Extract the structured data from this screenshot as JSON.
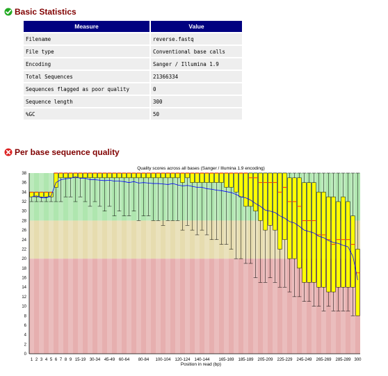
{
  "basic_statistics": {
    "title": "Basic Statistics",
    "status_icon": "pass-check-icon",
    "status_color": "#22aa22",
    "headers": [
      "Measure",
      "Value"
    ],
    "rows": [
      {
        "measure": "Filename",
        "value": "reverse.fastq"
      },
      {
        "measure": "File type",
        "value": "Conventional base calls"
      },
      {
        "measure": "Encoding",
        "value": "Sanger / Illumina 1.9"
      },
      {
        "measure": "Total Sequences",
        "value": "21366334"
      },
      {
        "measure": "Sequences flagged as poor quality",
        "value": "0"
      },
      {
        "measure": "Sequence length",
        "value": "300"
      },
      {
        "measure": "%GC",
        "value": "50"
      }
    ]
  },
  "per_base_quality": {
    "title": "Per base sequence quality",
    "status_icon": "fail-x-icon",
    "status_color": "#dd2222"
  },
  "colors": {
    "header_bg": "#000080",
    "section_title": "#800000",
    "zone_good": "#afe6af",
    "zone_warn": "#e6dcaf",
    "zone_bad": "#e6afaf",
    "box_fill": "#ffff00",
    "median": "#ff0000",
    "mean": "#0000ff"
  },
  "chart_data": {
    "type": "boxplot",
    "title": "Quality scores across all bases (Sanger / Illumina 1.9 encoding)",
    "xlabel": "Position in read (bp)",
    "ylabel": "",
    "ylim": [
      0,
      38
    ],
    "yticks": [
      0,
      2,
      4,
      6,
      8,
      10,
      12,
      14,
      16,
      18,
      20,
      22,
      24,
      26,
      28,
      30,
      32,
      34,
      36,
      38
    ],
    "zones": [
      {
        "name": "good",
        "from": 28,
        "to": 38
      },
      {
        "name": "warn",
        "from": 20,
        "to": 28
      },
      {
        "name": "bad",
        "from": 0,
        "to": 20
      }
    ],
    "categories": [
      "1",
      "2",
      "3",
      "4",
      "5",
      "6",
      "7",
      "8",
      "9",
      "10-14",
      "15-19",
      "20-24",
      "25-29",
      "30-34",
      "35-39",
      "40-44",
      "45-49",
      "50-54",
      "55-59",
      "60-64",
      "65-69",
      "70-74",
      "75-79",
      "80-84",
      "85-89",
      "90-94",
      "95-99",
      "100-104",
      "105-109",
      "110-114",
      "115-119",
      "120-124",
      "125-129",
      "130-134",
      "135-139",
      "140-144",
      "145-149",
      "150-154",
      "155-159",
      "160-164",
      "165-169",
      "170-174",
      "175-179",
      "180-184",
      "185-189",
      "190-194",
      "195-199",
      "200-204",
      "205-209",
      "210-214",
      "215-219",
      "220-224",
      "225-229",
      "230-234",
      "235-239",
      "240-244",
      "245-249",
      "250-254",
      "255-259",
      "260-264",
      "265-269",
      "270-274",
      "275-279",
      "280-284",
      "285-289",
      "290-294",
      "295-299",
      "300"
    ],
    "xtick_labels": [
      "1",
      "2",
      "3",
      "4",
      "5",
      "6",
      "7",
      "8",
      "9",
      "15-19",
      "30-34",
      "45-49",
      "60-64",
      "80-84",
      "100-104",
      "120-124",
      "140-144",
      "165-169",
      "185-189",
      "205-209",
      "225-229",
      "245-249",
      "265-269",
      "285-289",
      "300"
    ],
    "series": [
      {
        "name": "lower_whisker",
        "values": [
          32,
          32,
          32,
          32,
          32,
          32,
          32,
          33,
          33,
          32,
          33,
          32,
          31,
          32,
          31,
          30,
          31,
          29,
          30,
          29,
          29,
          30,
          28,
          29,
          29,
          28,
          28,
          27,
          28,
          28,
          28,
          26,
          27,
          26,
          25,
          26,
          25,
          24,
          24,
          23,
          23,
          22,
          20,
          20,
          19,
          19,
          16,
          15,
          15,
          16,
          15,
          14,
          14,
          13,
          12,
          12,
          11,
          11,
          10,
          10,
          9,
          10,
          9,
          9,
          9,
          9,
          8,
          8
        ]
      },
      {
        "name": "lower_quartile",
        "values": [
          33,
          33,
          33,
          33,
          33,
          35,
          37,
          37,
          37,
          37,
          37,
          37,
          37,
          37,
          37,
          37,
          37,
          37,
          37,
          37,
          37,
          37,
          37,
          37,
          37,
          37,
          37,
          37,
          37,
          37,
          37,
          36,
          37,
          36,
          36,
          36,
          36,
          36,
          36,
          36,
          35,
          35,
          34,
          33,
          31,
          31,
          30,
          28,
          26,
          27,
          26,
          22,
          24,
          20,
          20,
          18,
          15,
          15,
          15,
          14,
          14,
          13,
          13,
          14,
          14,
          14,
          14,
          8
        ]
      },
      {
        "name": "median",
        "values": [
          34,
          34,
          34,
          34,
          34,
          38,
          38,
          38,
          38,
          38,
          38,
          38,
          38,
          38,
          38,
          38,
          38,
          38,
          38,
          38,
          38,
          38,
          38,
          38,
          38,
          38,
          38,
          38,
          38,
          38,
          38,
          38,
          38,
          38,
          38,
          38,
          38,
          38,
          38,
          38,
          38,
          38,
          38,
          38,
          38,
          37,
          37,
          36,
          36,
          36,
          36,
          34,
          35,
          32,
          32,
          31,
          28,
          28,
          28,
          25,
          25,
          24,
          23,
          24,
          24,
          24,
          23,
          17
        ]
      },
      {
        "name": "upper_quartile",
        "values": [
          34,
          34,
          34,
          34,
          34,
          38,
          38,
          38,
          38,
          38,
          38,
          38,
          38,
          38,
          38,
          38,
          38,
          38,
          38,
          38,
          38,
          38,
          38,
          38,
          38,
          38,
          38,
          38,
          38,
          38,
          38,
          38,
          38,
          38,
          38,
          38,
          38,
          38,
          38,
          38,
          38,
          38,
          38,
          38,
          38,
          38,
          38,
          38,
          38,
          38,
          38,
          38,
          38,
          37,
          37,
          37,
          36,
          36,
          36,
          34,
          34,
          33,
          33,
          32,
          33,
          32,
          29,
          22
        ]
      },
      {
        "name": "upper_whisker",
        "values": [
          34,
          34,
          34,
          34,
          34,
          38,
          38,
          38,
          38,
          38,
          38,
          38,
          38,
          38,
          38,
          38,
          38,
          38,
          38,
          38,
          38,
          38,
          38,
          38,
          38,
          38,
          38,
          38,
          38,
          38,
          38,
          38,
          38,
          38,
          38,
          38,
          38,
          38,
          38,
          38,
          38,
          38,
          38,
          38,
          38,
          38,
          38,
          38,
          38,
          38,
          38,
          38,
          38,
          38,
          38,
          38,
          38,
          38,
          38,
          38,
          38,
          38,
          38,
          38,
          38,
          38,
          38,
          38
        ]
      },
      {
        "name": "mean",
        "values": [
          33.0,
          33.2,
          32.8,
          32.8,
          33.2,
          36.0,
          36.6,
          36.8,
          36.9,
          37.2,
          36.9,
          36.9,
          36.6,
          36.6,
          36.5,
          36.4,
          36.5,
          36.3,
          36.3,
          36.2,
          36.0,
          36.2,
          35.9,
          36.0,
          35.9,
          35.8,
          35.8,
          35.7,
          35.6,
          35.8,
          35.5,
          35.3,
          35.4,
          35.2,
          35.0,
          35.0,
          34.7,
          34.6,
          34.4,
          34.3,
          34.1,
          33.9,
          33.5,
          33.0,
          32.8,
          32.3,
          31.6,
          31.0,
          30.2,
          30.0,
          29.7,
          29.0,
          28.5,
          27.8,
          27.5,
          26.8,
          26.0,
          25.7,
          25.4,
          24.7,
          24.4,
          23.8,
          23.4,
          23.2,
          22.8,
          22.5,
          20.5,
          15.5
        ]
      }
    ]
  }
}
